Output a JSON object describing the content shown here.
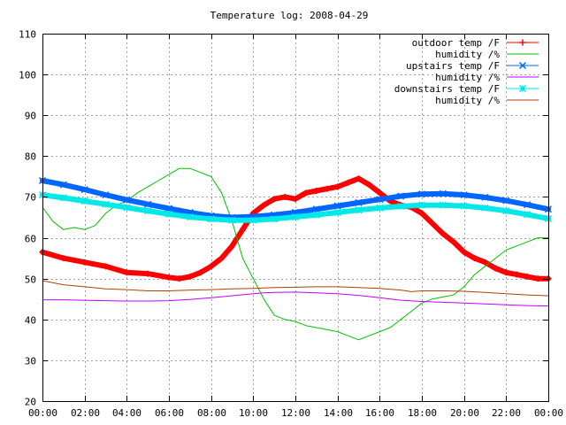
{
  "chart_data": {
    "type": "line",
    "title": "Temperature log: 2008-04-29",
    "xlabel": "",
    "ylabel": "",
    "xlim": [
      0,
      24
    ],
    "ylim": [
      20,
      110
    ],
    "x_ticks": [
      "00:00",
      "02:00",
      "04:00",
      "06:00",
      "08:00",
      "10:00",
      "12:00",
      "14:00",
      "16:00",
      "18:00",
      "20:00",
      "22:00",
      "00:00"
    ],
    "y_ticks": [
      "20",
      "30",
      "40",
      "50",
      "60",
      "70",
      "80",
      "90",
      "100",
      "110"
    ],
    "grid": true,
    "legend_position": "top-right",
    "series": [
      {
        "name": "outdoor temp /F",
        "color": "#ff0000",
        "marker": "plus",
        "x": [
          0,
          1,
          2,
          3,
          4,
          5,
          6,
          6.5,
          7,
          7.5,
          8,
          8.5,
          9,
          9.5,
          10,
          10.5,
          11,
          11.5,
          12,
          12.5,
          13,
          13.5,
          14,
          14.5,
          15,
          15.5,
          16,
          16.5,
          17,
          17.5,
          18,
          18.5,
          19,
          19.5,
          20,
          20.5,
          21,
          21.5,
          22,
          22.5,
          23,
          23.5,
          24
        ],
        "y": [
          56.5,
          55,
          54,
          53,
          51.5,
          51.2,
          50.3,
          50,
          50.5,
          51.5,
          53,
          55,
          58,
          62,
          66,
          68,
          69.5,
          70,
          69.5,
          71,
          71.5,
          72,
          72.5,
          73.5,
          74.5,
          73,
          71,
          69,
          68,
          67.5,
          66,
          63.5,
          61,
          59,
          56.5,
          55,
          54,
          52.5,
          51.5,
          51,
          50.5,
          50,
          50
        ]
      },
      {
        "name": "humidity /%",
        "color": "#00c000",
        "marker": "none",
        "x": [
          0,
          0.5,
          1,
          1.5,
          2,
          2.5,
          3,
          3.5,
          4,
          4.5,
          5,
          5.5,
          6,
          6.5,
          7,
          7.5,
          8,
          8.5,
          9,
          9.5,
          10,
          10.5,
          11,
          11.5,
          12,
          12.5,
          13,
          13.5,
          14,
          14.5,
          15,
          15.5,
          16,
          16.5,
          17,
          17.5,
          18,
          18.5,
          19,
          19.5,
          20,
          20.5,
          21,
          21.5,
          22,
          22.5,
          23,
          23.5,
          24
        ],
        "y": [
          67.5,
          64,
          62,
          62.5,
          62,
          63,
          66,
          68,
          69,
          71,
          72.5,
          74,
          75.5,
          77,
          77,
          76,
          75,
          71,
          64,
          55,
          50,
          45,
          41,
          40,
          39.5,
          38.5,
          38,
          37.5,
          37,
          36,
          35,
          36,
          37,
          38,
          40,
          42,
          44,
          45,
          45.5,
          46,
          48,
          51,
          53,
          55,
          57,
          58,
          59,
          60,
          60
        ]
      },
      {
        "name": "upstairs temp /F",
        "color": "#0066ff",
        "marker": "x",
        "x": [
          0,
          1,
          2,
          3,
          4,
          5,
          6,
          7,
          8,
          9,
          10,
          11,
          12,
          13,
          14,
          15,
          16,
          17,
          18,
          19,
          20,
          21,
          22,
          23,
          24
        ],
        "y": [
          74,
          73,
          71.8,
          70.5,
          69.3,
          68.2,
          67.2,
          66.2,
          65.4,
          65,
          65.2,
          65.6,
          66.2,
          67,
          67.8,
          68.6,
          69.4,
          70.2,
          70.7,
          70.8,
          70.5,
          69.9,
          69.1,
          68.1,
          67
        ]
      },
      {
        "name": "humidity /%",
        "color": "#c000ff",
        "marker": "none",
        "x": [
          0,
          1,
          2,
          3,
          4,
          5,
          6,
          7,
          8,
          9,
          10,
          10.5,
          11,
          12,
          13,
          14,
          15,
          16,
          17,
          18,
          19,
          20,
          21,
          22,
          23,
          24
        ],
        "y": [
          44.8,
          44.8,
          44.7,
          44.6,
          44.5,
          44.5,
          44.6,
          44.9,
          45.3,
          45.8,
          46.3,
          46.5,
          46.6,
          46.7,
          46.5,
          46.3,
          45.9,
          45.3,
          44.7,
          44.4,
          44.2,
          44,
          43.8,
          43.6,
          43.4,
          43.3
        ]
      },
      {
        "name": "downstairs temp /F",
        "color": "#00e8e8",
        "marker": "star",
        "x": [
          0,
          1,
          2,
          3,
          4,
          5,
          6,
          7,
          8,
          9,
          10,
          11,
          12,
          13,
          14,
          15,
          16,
          17,
          18,
          19,
          20,
          21,
          22,
          23,
          24
        ],
        "y": [
          70.5,
          69.8,
          69,
          68.2,
          67.4,
          66.6,
          65.8,
          65.1,
          64.6,
          64.3,
          64.3,
          64.6,
          65.1,
          65.6,
          66.2,
          66.8,
          67.3,
          67.7,
          68,
          68,
          67.8,
          67.3,
          66.6,
          65.7,
          64.7
        ]
      },
      {
        "name": "humidity /%",
        "color": "#b04000",
        "marker": "none",
        "x": [
          0,
          1,
          2,
          3,
          4,
          5,
          6,
          7,
          8,
          9,
          10,
          11,
          12,
          13,
          14,
          15,
          16,
          17,
          17.5,
          18,
          19,
          20,
          21,
          22,
          23,
          24
        ],
        "y": [
          49.5,
          48.5,
          48,
          47.5,
          47.3,
          47,
          47,
          47.2,
          47.3,
          47.5,
          47.6,
          47.8,
          47.9,
          48,
          48,
          47.8,
          47.6,
          47.2,
          46.8,
          47,
          47,
          46.9,
          46.6,
          46.3,
          46,
          45.8
        ]
      }
    ]
  }
}
